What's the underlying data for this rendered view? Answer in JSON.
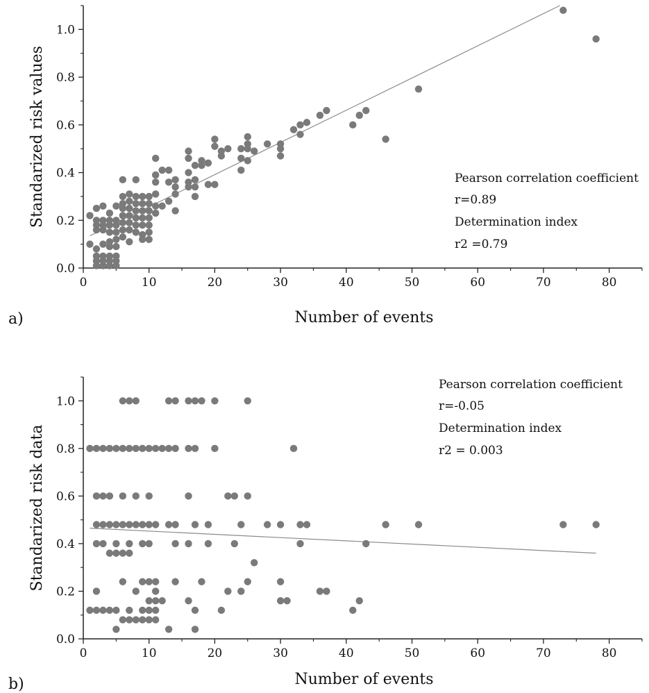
{
  "chart_data": [
    {
      "type": "scatter",
      "panel_label": "a)",
      "xlabel": "Number of events",
      "ylabel": "Standarized risk values",
      "xlim": [
        0,
        85
      ],
      "ylim": [
        0,
        1.1
      ],
      "xticks": [
        "0",
        "10",
        "20",
        "30",
        "40",
        "50",
        "60",
        "70",
        "80"
      ],
      "yticks": [
        "0.0",
        "0.2",
        "0.4",
        "0.6",
        "0.8",
        "1.0"
      ],
      "annotations": [
        "Pearson correlation coefficient",
        "r=0.89",
        "Determination index",
        "r2 =0.79"
      ],
      "trendline": {
        "x": [
          1,
          72.5
        ],
        "y": [
          0.135,
          1.1
        ]
      },
      "points": [
        [
          1,
          0.22
        ],
        [
          1,
          0.1
        ],
        [
          2,
          0.25
        ],
        [
          2,
          0.2
        ],
        [
          2,
          0.18
        ],
        [
          2,
          0.16
        ],
        [
          2,
          0.08
        ],
        [
          2,
          0.05
        ],
        [
          2,
          0.03
        ],
        [
          2,
          0.01
        ],
        [
          3,
          0.26
        ],
        [
          3,
          0.2
        ],
        [
          3,
          0.18
        ],
        [
          3,
          0.16
        ],
        [
          3,
          0.1
        ],
        [
          3,
          0.05
        ],
        [
          3,
          0.03
        ],
        [
          3,
          0.01
        ],
        [
          4,
          0.23
        ],
        [
          4,
          0.2
        ],
        [
          4,
          0.18
        ],
        [
          4,
          0.15
        ],
        [
          4,
          0.11
        ],
        [
          4,
          0.09
        ],
        [
          4,
          0.05
        ],
        [
          4,
          0.03
        ],
        [
          4,
          0.01
        ],
        [
          5,
          0.26
        ],
        [
          5,
          0.2
        ],
        [
          5,
          0.18
        ],
        [
          5,
          0.15
        ],
        [
          5,
          0.12
        ],
        [
          5,
          0.09
        ],
        [
          5,
          0.05
        ],
        [
          5,
          0.03
        ],
        [
          5,
          0.01
        ],
        [
          6,
          0.37
        ],
        [
          6,
          0.3
        ],
        [
          6,
          0.27
        ],
        [
          6,
          0.25
        ],
        [
          6,
          0.22
        ],
        [
          6,
          0.19
        ],
        [
          6,
          0.16
        ],
        [
          6,
          0.13
        ],
        [
          7,
          0.31
        ],
        [
          7,
          0.28
        ],
        [
          7,
          0.25
        ],
        [
          7,
          0.22
        ],
        [
          7,
          0.19
        ],
        [
          7,
          0.16
        ],
        [
          7,
          0.11
        ],
        [
          8,
          0.37
        ],
        [
          8,
          0.3
        ],
        [
          8,
          0.27
        ],
        [
          8,
          0.24
        ],
        [
          8,
          0.21
        ],
        [
          8,
          0.18
        ],
        [
          8,
          0.15
        ],
        [
          9,
          0.3
        ],
        [
          9,
          0.27
        ],
        [
          9,
          0.24
        ],
        [
          9,
          0.21
        ],
        [
          9,
          0.18
        ],
        [
          9,
          0.14
        ],
        [
          9,
          0.12
        ],
        [
          10,
          0.3
        ],
        [
          10,
          0.27
        ],
        [
          10,
          0.24
        ],
        [
          10,
          0.21
        ],
        [
          10,
          0.18
        ],
        [
          10,
          0.15
        ],
        [
          10,
          0.12
        ],
        [
          11,
          0.46
        ],
        [
          11,
          0.39
        ],
        [
          11,
          0.36
        ],
        [
          11,
          0.31
        ],
        [
          11,
          0.26
        ],
        [
          11,
          0.23
        ],
        [
          12,
          0.41
        ],
        [
          12,
          0.26
        ],
        [
          13,
          0.41
        ],
        [
          13,
          0.36
        ],
        [
          13,
          0.28
        ],
        [
          14,
          0.37
        ],
        [
          14,
          0.34
        ],
        [
          14,
          0.31
        ],
        [
          14,
          0.24
        ],
        [
          16,
          0.49
        ],
        [
          16,
          0.46
        ],
        [
          16,
          0.4
        ],
        [
          16,
          0.36
        ],
        [
          16,
          0.34
        ],
        [
          17,
          0.43
        ],
        [
          17,
          0.37
        ],
        [
          17,
          0.34
        ],
        [
          17,
          0.3
        ],
        [
          18,
          0.45
        ],
        [
          18,
          0.43
        ],
        [
          19,
          0.44
        ],
        [
          19,
          0.35
        ],
        [
          20,
          0.54
        ],
        [
          20,
          0.51
        ],
        [
          20,
          0.35
        ],
        [
          21,
          0.49
        ],
        [
          21,
          0.47
        ],
        [
          22,
          0.5
        ],
        [
          24,
          0.5
        ],
        [
          24,
          0.46
        ],
        [
          24,
          0.41
        ],
        [
          25,
          0.55
        ],
        [
          25,
          0.52
        ],
        [
          25,
          0.5
        ],
        [
          25,
          0.45
        ],
        [
          26,
          0.49
        ],
        [
          28,
          0.52
        ],
        [
          30,
          0.52
        ],
        [
          30,
          0.5
        ],
        [
          30,
          0.47
        ],
        [
          32,
          0.58
        ],
        [
          33,
          0.6
        ],
        [
          33,
          0.56
        ],
        [
          34,
          0.61
        ],
        [
          36,
          0.64
        ],
        [
          37,
          0.66
        ],
        [
          41,
          0.6
        ],
        [
          42,
          0.64
        ],
        [
          43,
          0.66
        ],
        [
          46,
          0.54
        ],
        [
          51,
          0.75
        ],
        [
          73,
          1.08
        ],
        [
          78,
          0.96
        ]
      ]
    },
    {
      "type": "scatter",
      "panel_label": "b)",
      "xlabel": "Number of events",
      "ylabel": "Standarized risk data",
      "xlim": [
        0,
        85
      ],
      "ylim": [
        0,
        1.1
      ],
      "xticks": [
        "0",
        "10",
        "20",
        "30",
        "40",
        "50",
        "60",
        "70",
        "80"
      ],
      "yticks": [
        "0.0",
        "0.2",
        "0.4",
        "0.6",
        "0.8",
        "1.0"
      ],
      "annotations": [
        "Pearson correlation coefficient",
        "r=-0.05",
        "Determination index",
        "r2 = 0.003"
      ],
      "trendline": {
        "x": [
          1,
          78
        ],
        "y": [
          0.465,
          0.36
        ]
      },
      "points": [
        [
          1,
          0.8
        ],
        [
          1,
          0.12
        ],
        [
          2,
          0.8
        ],
        [
          2,
          0.6
        ],
        [
          2,
          0.48
        ],
        [
          2,
          0.4
        ],
        [
          2,
          0.2
        ],
        [
          2,
          0.12
        ],
        [
          3,
          0.8
        ],
        [
          3,
          0.6
        ],
        [
          3,
          0.48
        ],
        [
          3,
          0.4
        ],
        [
          3,
          0.12
        ],
        [
          4,
          0.8
        ],
        [
          4,
          0.6
        ],
        [
          4,
          0.48
        ],
        [
          4,
          0.36
        ],
        [
          4,
          0.12
        ],
        [
          5,
          0.8
        ],
        [
          5,
          0.48
        ],
        [
          5,
          0.4
        ],
        [
          5,
          0.36
        ],
        [
          5,
          0.12
        ],
        [
          5,
          0.04
        ],
        [
          6,
          1.0
        ],
        [
          6,
          0.8
        ],
        [
          6,
          0.6
        ],
        [
          6,
          0.48
        ],
        [
          6,
          0.36
        ],
        [
          6,
          0.24
        ],
        [
          6,
          0.08
        ],
        [
          7,
          1.0
        ],
        [
          7,
          0.8
        ],
        [
          7,
          0.48
        ],
        [
          7,
          0.4
        ],
        [
          7,
          0.36
        ],
        [
          7,
          0.12
        ],
        [
          7,
          0.08
        ],
        [
          8,
          1.0
        ],
        [
          8,
          0.8
        ],
        [
          8,
          0.6
        ],
        [
          8,
          0.48
        ],
        [
          8,
          0.2
        ],
        [
          8,
          0.08
        ],
        [
          9,
          0.8
        ],
        [
          9,
          0.48
        ],
        [
          9,
          0.4
        ],
        [
          9,
          0.24
        ],
        [
          9,
          0.12
        ],
        [
          9,
          0.08
        ],
        [
          10,
          0.8
        ],
        [
          10,
          0.6
        ],
        [
          10,
          0.48
        ],
        [
          10,
          0.4
        ],
        [
          10,
          0.24
        ],
        [
          10,
          0.16
        ],
        [
          10,
          0.12
        ],
        [
          10,
          0.08
        ],
        [
          11,
          0.8
        ],
        [
          11,
          0.48
        ],
        [
          11,
          0.24
        ],
        [
          11,
          0.2
        ],
        [
          11,
          0.16
        ],
        [
          11,
          0.12
        ],
        [
          11,
          0.08
        ],
        [
          12,
          0.8
        ],
        [
          12,
          0.16
        ],
        [
          13,
          1.0
        ],
        [
          13,
          0.8
        ],
        [
          13,
          0.48
        ],
        [
          13,
          0.04
        ],
        [
          14,
          1.0
        ],
        [
          14,
          0.8
        ],
        [
          14,
          0.48
        ],
        [
          14,
          0.4
        ],
        [
          14,
          0.24
        ],
        [
          16,
          1.0
        ],
        [
          16,
          0.8
        ],
        [
          16,
          0.6
        ],
        [
          16,
          0.4
        ],
        [
          16,
          0.16
        ],
        [
          17,
          1.0
        ],
        [
          17,
          0.8
        ],
        [
          17,
          0.48
        ],
        [
          17,
          0.12
        ],
        [
          17,
          0.04
        ],
        [
          18,
          1.0
        ],
        [
          18,
          0.24
        ],
        [
          19,
          0.48
        ],
        [
          19,
          0.4
        ],
        [
          20,
          1.0
        ],
        [
          20,
          0.8
        ],
        [
          21,
          0.12
        ],
        [
          22,
          0.6
        ],
        [
          22,
          0.2
        ],
        [
          23,
          0.6
        ],
        [
          23,
          0.4
        ],
        [
          24,
          0.48
        ],
        [
          24,
          0.2
        ],
        [
          25,
          1.0
        ],
        [
          25,
          0.6
        ],
        [
          25,
          0.24
        ],
        [
          26,
          0.32
        ],
        [
          28,
          0.48
        ],
        [
          30,
          0.48
        ],
        [
          30,
          0.24
        ],
        [
          30,
          0.16
        ],
        [
          31,
          0.16
        ],
        [
          32,
          0.8
        ],
        [
          33,
          0.48
        ],
        [
          33,
          0.4
        ],
        [
          34,
          0.48
        ],
        [
          36,
          0.2
        ],
        [
          37,
          0.2
        ],
        [
          41,
          0.12
        ],
        [
          42,
          0.16
        ],
        [
          43,
          0.4
        ],
        [
          46,
          0.48
        ],
        [
          51,
          0.48
        ],
        [
          73,
          0.48
        ],
        [
          78,
          0.48
        ]
      ]
    }
  ]
}
